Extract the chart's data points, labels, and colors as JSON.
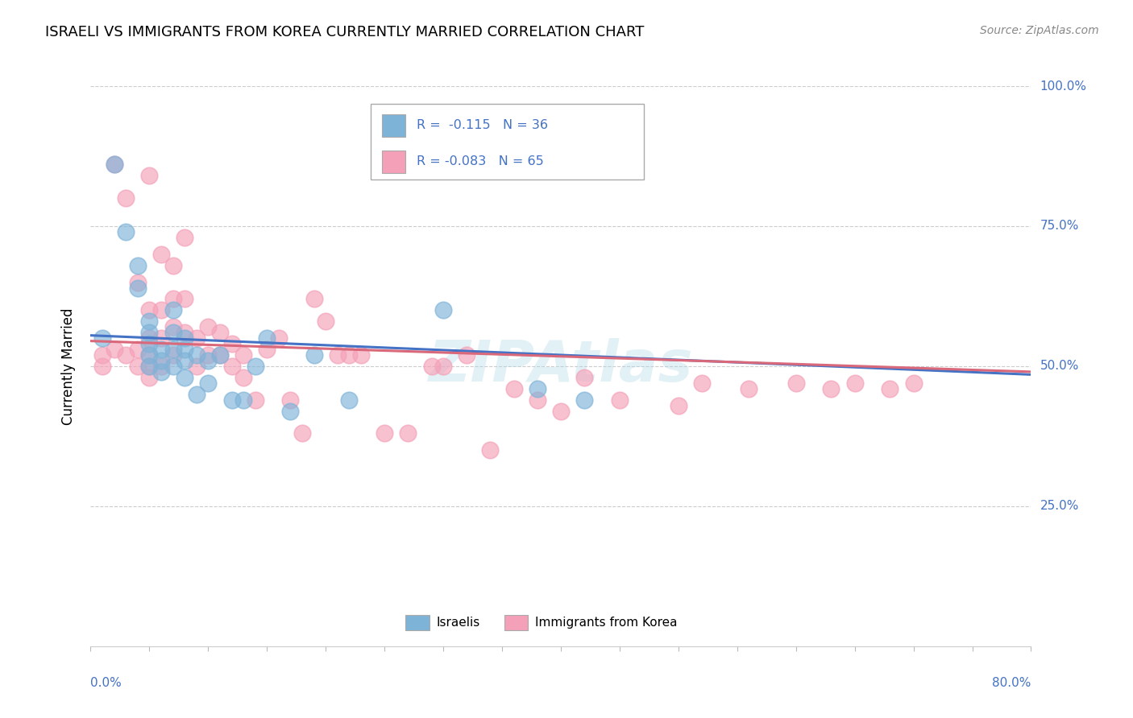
{
  "title": "ISRAELI VS IMMIGRANTS FROM KOREA CURRENTLY MARRIED CORRELATION CHART",
  "source": "Source: ZipAtlas.com",
  "ylabel": "Currently Married",
  "israeli_color": "#7eb3d8",
  "korea_color": "#f4a0b8",
  "trend_israeli_color": "#4472c4",
  "trend_korea_color": "#d9687a",
  "watermark": "ZIPAtlas",
  "xlim": [
    0.0,
    0.8
  ],
  "ylim": [
    0.0,
    1.0
  ],
  "grid_color": "#cccccc",
  "israeli_x": [
    0.01,
    0.02,
    0.03,
    0.04,
    0.04,
    0.05,
    0.05,
    0.05,
    0.05,
    0.05,
    0.06,
    0.06,
    0.06,
    0.07,
    0.07,
    0.07,
    0.07,
    0.08,
    0.08,
    0.08,
    0.08,
    0.09,
    0.09,
    0.1,
    0.1,
    0.11,
    0.12,
    0.13,
    0.14,
    0.15,
    0.17,
    0.19,
    0.22,
    0.3,
    0.38,
    0.42
  ],
  "israeli_y": [
    0.55,
    0.86,
    0.74,
    0.68,
    0.64,
    0.58,
    0.56,
    0.54,
    0.52,
    0.5,
    0.53,
    0.51,
    0.49,
    0.6,
    0.56,
    0.53,
    0.5,
    0.55,
    0.53,
    0.51,
    0.48,
    0.52,
    0.45,
    0.51,
    0.47,
    0.52,
    0.44,
    0.44,
    0.5,
    0.55,
    0.42,
    0.52,
    0.44,
    0.6,
    0.46,
    0.44
  ],
  "korea_x": [
    0.01,
    0.01,
    0.02,
    0.02,
    0.03,
    0.03,
    0.04,
    0.04,
    0.04,
    0.05,
    0.05,
    0.05,
    0.05,
    0.05,
    0.05,
    0.06,
    0.06,
    0.06,
    0.06,
    0.07,
    0.07,
    0.07,
    0.07,
    0.08,
    0.08,
    0.08,
    0.09,
    0.09,
    0.1,
    0.1,
    0.11,
    0.11,
    0.12,
    0.12,
    0.13,
    0.13,
    0.14,
    0.15,
    0.16,
    0.17,
    0.18,
    0.19,
    0.2,
    0.21,
    0.22,
    0.23,
    0.25,
    0.27,
    0.29,
    0.3,
    0.32,
    0.34,
    0.36,
    0.38,
    0.4,
    0.42,
    0.45,
    0.5,
    0.52,
    0.56,
    0.6,
    0.63,
    0.65,
    0.68,
    0.7
  ],
  "korea_y": [
    0.52,
    0.5,
    0.86,
    0.53,
    0.8,
    0.52,
    0.65,
    0.53,
    0.5,
    0.84,
    0.6,
    0.55,
    0.52,
    0.5,
    0.48,
    0.7,
    0.6,
    0.55,
    0.5,
    0.68,
    0.62,
    0.57,
    0.52,
    0.73,
    0.62,
    0.56,
    0.55,
    0.5,
    0.57,
    0.52,
    0.56,
    0.52,
    0.54,
    0.5,
    0.52,
    0.48,
    0.44,
    0.53,
    0.55,
    0.44,
    0.38,
    0.62,
    0.58,
    0.52,
    0.52,
    0.52,
    0.38,
    0.38,
    0.5,
    0.5,
    0.52,
    0.35,
    0.46,
    0.44,
    0.42,
    0.48,
    0.44,
    0.43,
    0.47,
    0.46,
    0.47,
    0.46,
    0.47,
    0.46,
    0.47
  ],
  "trend_isr_x0": 0.0,
  "trend_isr_y0": 0.555,
  "trend_isr_x1": 0.8,
  "trend_isr_y1": 0.485,
  "trend_kor_x0": 0.0,
  "trend_kor_y0": 0.545,
  "trend_kor_x1": 0.8,
  "trend_kor_y1": 0.49
}
